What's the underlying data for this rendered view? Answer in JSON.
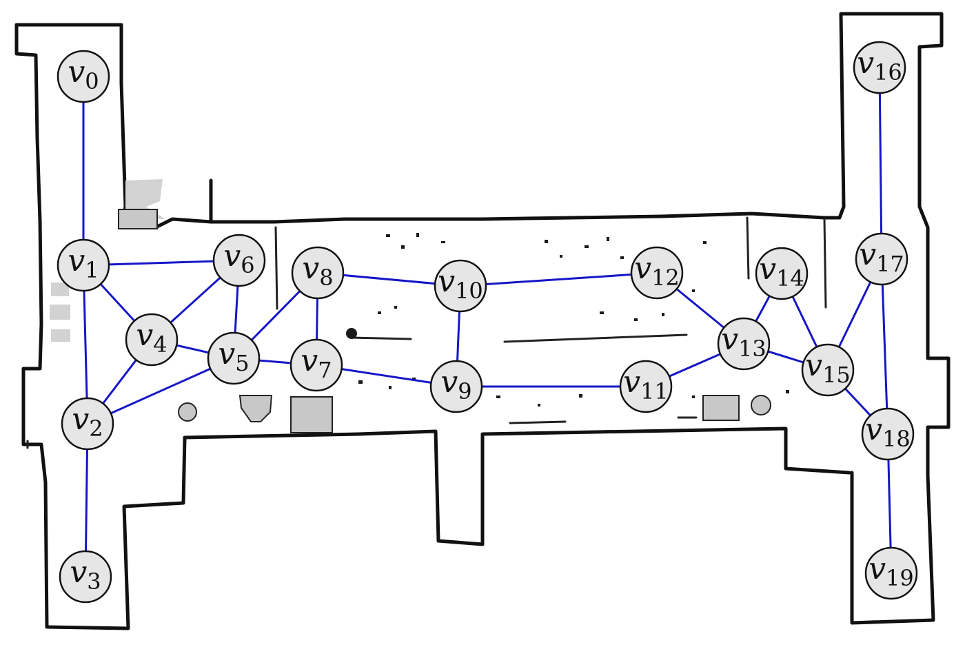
{
  "map": {
    "nodes": [
      {
        "id": "v0",
        "base": "v",
        "sub": "0"
      },
      {
        "id": "v1",
        "base": "v",
        "sub": "1"
      },
      {
        "id": "v2",
        "base": "v",
        "sub": "2"
      },
      {
        "id": "v3",
        "base": "v",
        "sub": "3"
      },
      {
        "id": "v4",
        "base": "v",
        "sub": "4"
      },
      {
        "id": "v5",
        "base": "v",
        "sub": "5"
      },
      {
        "id": "v6",
        "base": "v",
        "sub": "6"
      },
      {
        "id": "v7",
        "base": "v",
        "sub": "7"
      },
      {
        "id": "v8",
        "base": "v",
        "sub": "8"
      },
      {
        "id": "v9",
        "base": "v",
        "sub": "9"
      },
      {
        "id": "v10",
        "base": "v",
        "sub": "10"
      },
      {
        "id": "v11",
        "base": "v",
        "sub": "11"
      },
      {
        "id": "v12",
        "base": "v",
        "sub": "12"
      },
      {
        "id": "v13",
        "base": "v",
        "sub": "13"
      },
      {
        "id": "v14",
        "base": "v",
        "sub": "14"
      },
      {
        "id": "v15",
        "base": "v",
        "sub": "15"
      },
      {
        "id": "v16",
        "base": "v",
        "sub": "16"
      },
      {
        "id": "v17",
        "base": "v",
        "sub": "17"
      },
      {
        "id": "v18",
        "base": "v",
        "sub": "18"
      },
      {
        "id": "v19",
        "base": "v",
        "sub": "19"
      }
    ],
    "edges": [
      [
        "v0",
        "v1"
      ],
      [
        "v1",
        "v2"
      ],
      [
        "v2",
        "v3"
      ],
      [
        "v1",
        "v6"
      ],
      [
        "v1",
        "v4"
      ],
      [
        "v4",
        "v6"
      ],
      [
        "v4",
        "v2"
      ],
      [
        "v4",
        "v5"
      ],
      [
        "v2",
        "v5"
      ],
      [
        "v6",
        "v5"
      ],
      [
        "v5",
        "v8"
      ],
      [
        "v5",
        "v7"
      ],
      [
        "v8",
        "v7"
      ],
      [
        "v8",
        "v10"
      ],
      [
        "v7",
        "v9"
      ],
      [
        "v10",
        "v9"
      ],
      [
        "v10",
        "v12"
      ],
      [
        "v9",
        "v11"
      ],
      [
        "v12",
        "v13"
      ],
      [
        "v11",
        "v13"
      ],
      [
        "v13",
        "v14"
      ],
      [
        "v13",
        "v15"
      ],
      [
        "v14",
        "v15"
      ],
      [
        "v15",
        "v17"
      ],
      [
        "v15",
        "v18"
      ],
      [
        "v16",
        "v17"
      ],
      [
        "v17",
        "v18"
      ],
      [
        "v18",
        "v19"
      ]
    ],
    "colors": {
      "edge": "#1616c8",
      "node_fill": "#e6e6e6",
      "node_stroke": "#111111",
      "wall": "#111111",
      "obstacle": "#c8c8c8"
    }
  }
}
